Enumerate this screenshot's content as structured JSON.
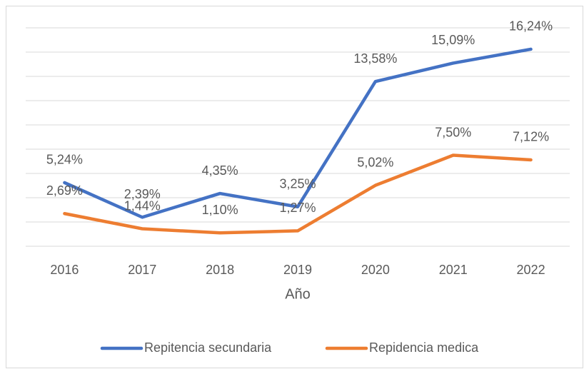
{
  "chart_data": {
    "type": "line",
    "x_label": "Año",
    "categories": [
      "2016",
      "2017",
      "2018",
      "2019",
      "2020",
      "2021",
      "2022"
    ],
    "series": [
      {
        "name": "Repitencia secundaria",
        "color": "#4472c4",
        "values": [
          5.24,
          2.39,
          4.35,
          3.25,
          13.58,
          15.09,
          16.24
        ],
        "value_labels": [
          "5,24%",
          "2,39%",
          "4,35%",
          "3,25%",
          "13,58%",
          "15,09%",
          "16,24%"
        ]
      },
      {
        "name": "Repidencia medica",
        "color": "#ed7d31",
        "values": [
          2.69,
          1.44,
          1.1,
          1.27,
          5.02,
          7.5,
          7.12
        ],
        "value_labels": [
          "2,69%",
          "1,44%",
          "1,10%",
          "1,27%",
          "5,02%",
          "7,50%",
          "7,12%"
        ]
      }
    ],
    "ylim": [
      0,
      18
    ],
    "yticks": [
      0,
      2,
      4,
      6,
      8,
      10,
      12,
      14,
      16,
      18
    ],
    "grid": true,
    "legend": "bottom"
  }
}
